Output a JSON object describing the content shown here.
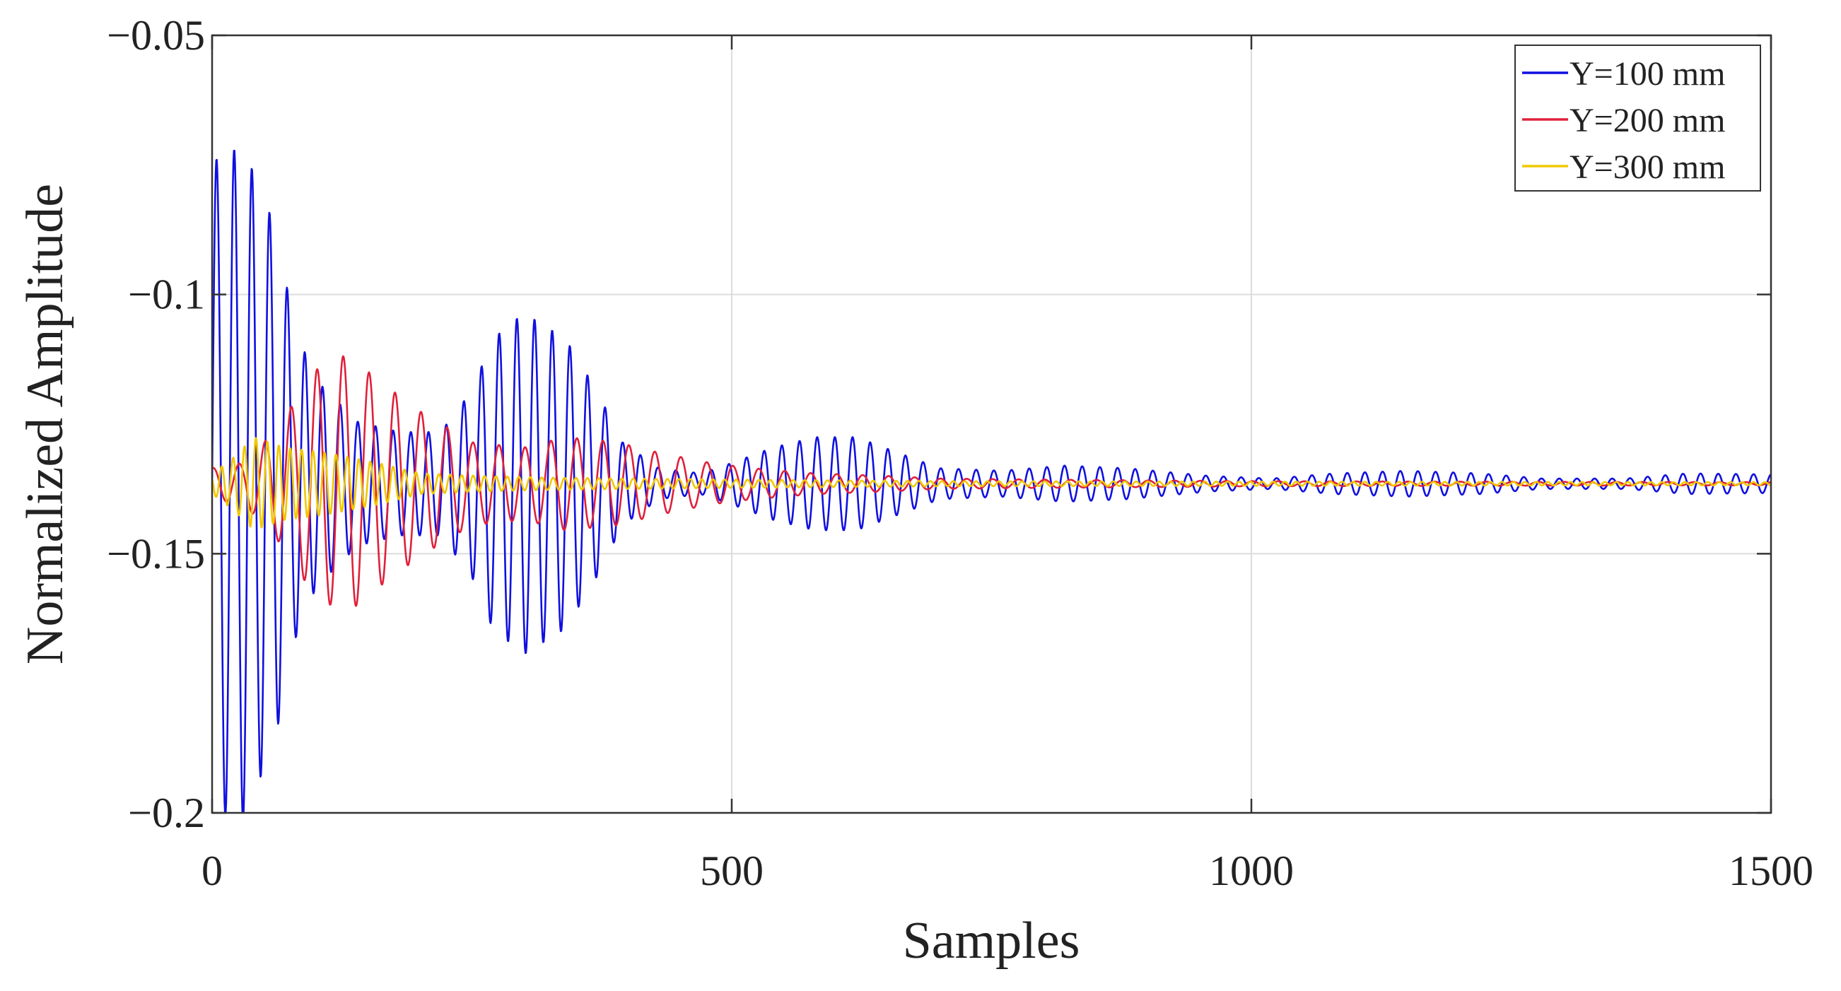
{
  "chart_data": {
    "type": "line",
    "title": "",
    "xlabel": "Samples",
    "ylabel": "Normalized Amplitude",
    "xlim": [
      0,
      1500
    ],
    "ylim": [
      -0.2,
      -0.05
    ],
    "xticks": [
      0,
      500,
      1000,
      1500
    ],
    "xtick_labels": [
      "0",
      "500",
      "1000",
      "1500"
    ],
    "yticks": [
      -0.2,
      -0.15,
      -0.1,
      -0.05
    ],
    "ytick_labels": [
      "−0.2",
      "−0.15",
      "−0.1",
      "−0.05"
    ],
    "grid": true,
    "legend_position": "top-right",
    "baseline": -0.1365,
    "series": [
      {
        "name": "Y=100 mm",
        "color": "#1010e0",
        "period_samples": 17,
        "envelope": [
          [
            0,
            0.062
          ],
          [
            12,
            0.064
          ],
          [
            30,
            0.065
          ],
          [
            60,
            0.05
          ],
          [
            80,
            0.03
          ],
          [
            100,
            0.02
          ],
          [
            140,
            0.012
          ],
          [
            180,
            0.01
          ],
          [
            220,
            0.01
          ],
          [
            250,
            0.018
          ],
          [
            270,
            0.028
          ],
          [
            300,
            0.033
          ],
          [
            340,
            0.028
          ],
          [
            370,
            0.018
          ],
          [
            395,
            0.008
          ],
          [
            430,
            0.003
          ],
          [
            470,
            0.002
          ],
          [
            500,
            0.004
          ],
          [
            540,
            0.007
          ],
          [
            580,
            0.009
          ],
          [
            620,
            0.009
          ],
          [
            660,
            0.006
          ],
          [
            700,
            0.003
          ],
          [
            760,
            0.0025
          ],
          [
            820,
            0.0035
          ],
          [
            880,
            0.003
          ],
          [
            960,
            0.0015
          ],
          [
            1020,
            0.001
          ],
          [
            1080,
            0.002
          ],
          [
            1150,
            0.0025
          ],
          [
            1220,
            0.002
          ],
          [
            1280,
            0.001
          ],
          [
            1360,
            0.001
          ],
          [
            1420,
            0.002
          ],
          [
            1500,
            0.0018
          ]
        ]
      },
      {
        "name": "Y=200 mm",
        "color": "#e0203a",
        "period_samples": 25,
        "envelope": [
          [
            0,
            0.003
          ],
          [
            30,
            0.004
          ],
          [
            60,
            0.01
          ],
          [
            100,
            0.022
          ],
          [
            130,
            0.025
          ],
          [
            160,
            0.02
          ],
          [
            200,
            0.014
          ],
          [
            250,
            0.008
          ],
          [
            300,
            0.007
          ],
          [
            340,
            0.009
          ],
          [
            390,
            0.008
          ],
          [
            430,
            0.006
          ],
          [
            480,
            0.004
          ],
          [
            520,
            0.003
          ],
          [
            580,
            0.002
          ],
          [
            650,
            0.0015
          ],
          [
            700,
            0.001
          ],
          [
            800,
            0.0008
          ],
          [
            1000,
            0.0005
          ],
          [
            1200,
            0.0004
          ],
          [
            1500,
            0.0003
          ]
        ]
      },
      {
        "name": "Y=300 mm",
        "color": "#f0c800",
        "period_samples": 11,
        "envelope": [
          [
            0,
            0.002
          ],
          [
            20,
            0.005
          ],
          [
            40,
            0.009
          ],
          [
            70,
            0.007
          ],
          [
            110,
            0.006
          ],
          [
            160,
            0.004
          ],
          [
            200,
            0.002
          ],
          [
            260,
            0.0015
          ],
          [
            320,
            0.0012
          ],
          [
            400,
            0.001
          ],
          [
            500,
            0.0008
          ],
          [
            700,
            0.0005
          ],
          [
            1000,
            0.0004
          ],
          [
            1500,
            0.0003
          ]
        ]
      }
    ]
  }
}
